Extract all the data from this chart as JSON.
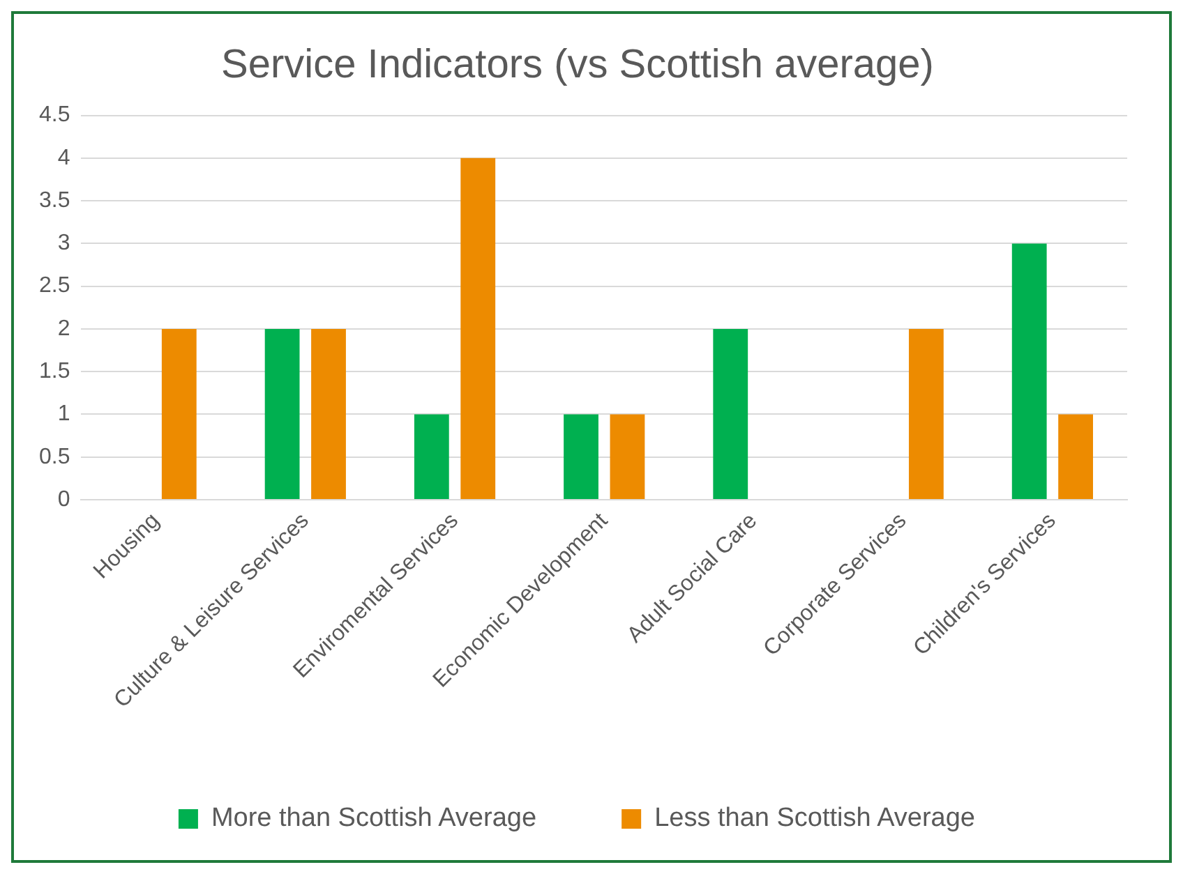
{
  "chart_data": {
    "type": "bar",
    "title": "Service Indicators (vs Scottish average)",
    "categories": [
      "Housing",
      "Culture & Leisure Services",
      "Enviromental Services",
      "Economic Development",
      "Adult Social Care",
      "Corporate Services",
      "Children's Services"
    ],
    "series": [
      {
        "name": "More than Scottish Average",
        "color": "#00b050",
        "values": [
          0,
          2,
          1,
          1,
          2,
          0,
          3
        ]
      },
      {
        "name": "Less than Scottish Average",
        "color": "#ed8b00",
        "values": [
          2,
          2,
          4,
          1,
          0,
          2,
          1
        ]
      }
    ],
    "ylim": [
      0,
      4.5
    ],
    "yticks": [
      0,
      0.5,
      1,
      1.5,
      2,
      2.5,
      3,
      3.5,
      4,
      4.5
    ],
    "grid": "y",
    "legend": "bottom"
  }
}
